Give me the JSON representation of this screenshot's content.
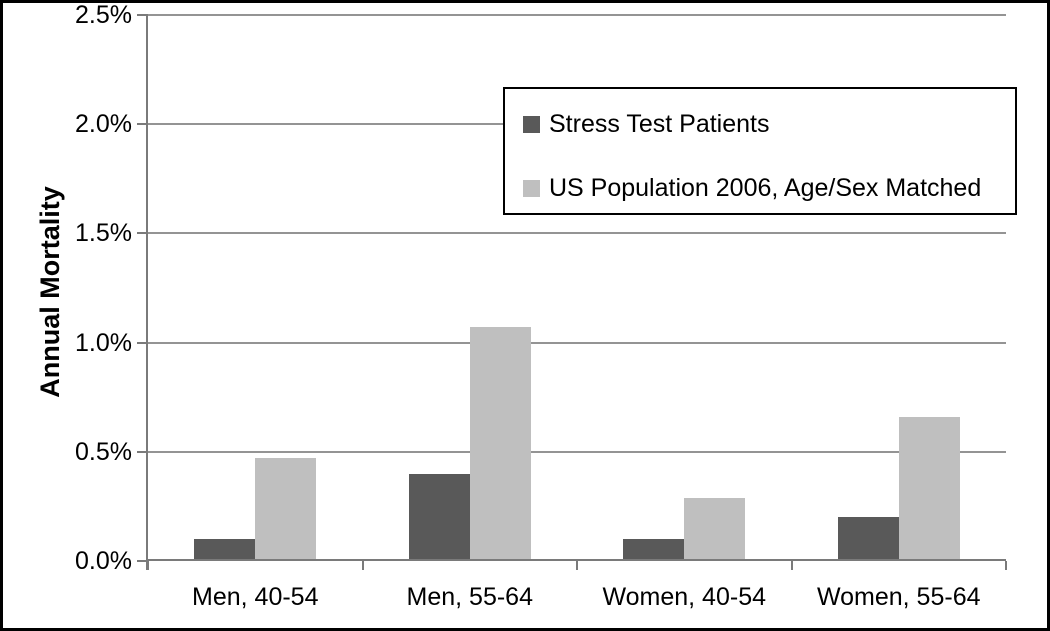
{
  "figure": {
    "background_color": "#ffffff",
    "border_color": "#000000"
  },
  "chart_data": {
    "type": "bar",
    "title": "",
    "xlabel": "",
    "ylabel": "Annual Mortality",
    "categories": [
      "Men, 40-54",
      "Men, 55-64",
      "Women, 40-54",
      "Women, 55-64"
    ],
    "series": [
      {
        "name": "Stress Test Patients",
        "color": "#595959",
        "values": [
          0.1,
          0.4,
          0.1,
          0.2
        ]
      },
      {
        "name": "US Population 2006, Age/Sex Matched",
        "color": "#bfbfbf",
        "values": [
          0.47,
          1.07,
          0.29,
          0.66
        ]
      }
    ],
    "ylim": [
      0,
      2.5
    ],
    "y_tick_values": [
      2.5,
      2.0,
      1.5,
      1.0,
      0.5,
      0.0
    ],
    "y_tick_labels": [
      "2.5%",
      "2.0%",
      "1.5%",
      "1.0%",
      "0.5%",
      "0.0%"
    ],
    "value_unit": "percent",
    "grid": true,
    "legend_position": "top-right",
    "grid_color": "#949494",
    "axis_color": "#7a7a7a"
  }
}
